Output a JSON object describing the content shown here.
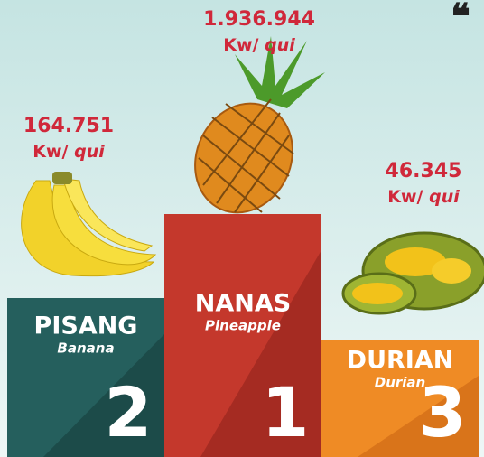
{
  "podium": [
    {
      "value": "164.751",
      "unit": "Kw/",
      "unit_italic": "qui",
      "name": "PISANG",
      "subname": "Banana",
      "rank": "2"
    },
    {
      "value": "1.936.944",
      "unit": "Kw/",
      "unit_italic": "qui",
      "name": "NANAS",
      "subname": "Pineapple",
      "rank": "1"
    },
    {
      "value": "46.345",
      "unit": "Kw/",
      "unit_italic": "qui",
      "name": "DURIAN",
      "subname": "Durian",
      "rank": "3"
    }
  ]
}
